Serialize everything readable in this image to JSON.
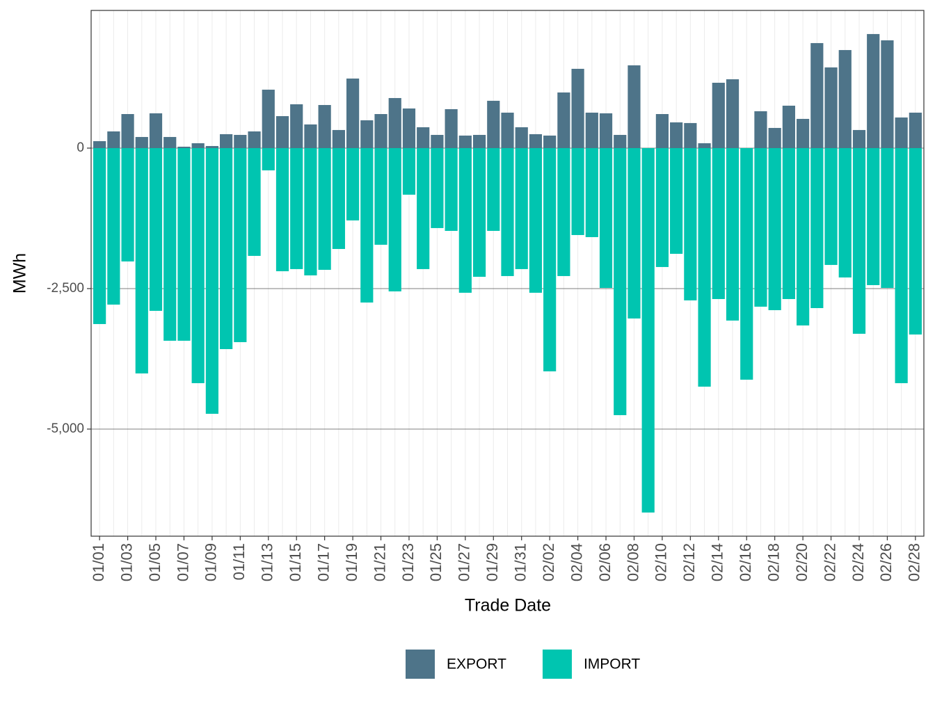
{
  "chart_data": {
    "type": "bar",
    "x_label": "Trade Date",
    "y_label": "MWh",
    "categories": [
      "01/01",
      null,
      "01/03",
      null,
      "01/05",
      null,
      "01/07",
      null,
      "01/09",
      null,
      "01/11",
      null,
      "01/13",
      null,
      "01/15",
      null,
      "01/17",
      null,
      "01/19",
      null,
      "01/21",
      null,
      "01/23",
      null,
      "01/25",
      null,
      "01/27",
      null,
      "01/29",
      null,
      "01/31",
      null,
      "02/02",
      null,
      "02/04",
      null,
      "02/06",
      null,
      "02/08",
      null,
      "02/10",
      null,
      "02/12",
      null,
      "02/14",
      null,
      "02/16",
      null,
      "02/18",
      null,
      "02/20",
      null,
      "02/22",
      null,
      "02/24",
      null,
      "02/26",
      null,
      "02/28"
    ],
    "series": [
      {
        "name": "EXPORT",
        "color": "#4e7489",
        "values": [
          124,
          297,
          606,
          198,
          619,
          198,
          25,
          87,
          37,
          248,
          235,
          297,
          1040,
          569,
          780,
          421,
          767,
          322,
          1238,
          495,
          606,
          891,
          705,
          371,
          235,
          693,
          223,
          235,
          842,
          631,
          371,
          248,
          223,
          990,
          1411,
          631,
          619,
          235,
          1473,
          0,
          606,
          458,
          446,
          87,
          1163,
          1225,
          0,
          656,
          359,
          755,
          520,
          1869,
          1436,
          1745,
          322,
          2030,
          1918,
          545,
          631
        ]
      },
      {
        "name": "IMPORT",
        "color": "#00c5b0",
        "values": [
          -3131,
          -2785,
          -2017,
          -4010,
          -2896,
          -3428,
          -3428,
          -4183,
          -4728,
          -3577,
          -3453,
          -1918,
          -396,
          -2191,
          -2153,
          -2265,
          -2166,
          -1795,
          -1287,
          -2748,
          -1720,
          -2550,
          -829,
          -2153,
          -1423,
          -1473,
          -2574,
          -2290,
          -1473,
          -2277,
          -2153,
          -2574,
          -3973,
          -2277,
          -1547,
          -1584,
          -2488,
          -4752,
          -3032,
          -6485,
          -2116,
          -1881,
          -2710,
          -4245,
          -2686,
          -3069,
          -4121,
          -2822,
          -2884,
          -2686,
          -3156,
          -2847,
          -2079,
          -2302,
          -3304,
          -2438,
          -2488,
          -4183,
          -3317
        ]
      }
    ],
    "ylim": [
      -6906,
      2450
    ],
    "yticks": [
      {
        "value": -5000,
        "label": "-5,000"
      },
      {
        "value": -2500,
        "label": "-2,500"
      },
      0
    ],
    "grid": true,
    "legend": "bottom"
  }
}
